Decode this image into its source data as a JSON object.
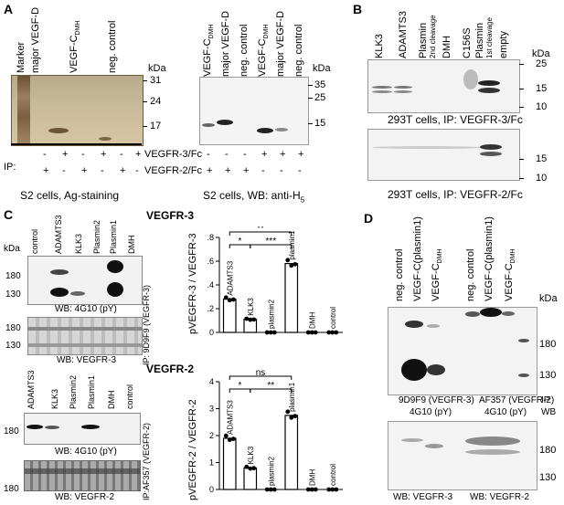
{
  "panels": {
    "A": {
      "label": "A",
      "left": {
        "lanes": [
          "Marker",
          "major VEGF-D",
          "VEGF-C",
          "neg. control"
        ],
        "lane_group_subs": {
          "VEGF-C": "DMH"
        },
        "kda": "kDa",
        "mw": [
          "31",
          "24",
          "17"
        ],
        "ip_label": "IP:",
        "ip_rows": [
          {
            "marks": [
              "-",
              "+",
              "-",
              "+",
              "-",
              "+"
            ],
            "label": "VEGFR-3/Fc"
          },
          {
            "marks": [
              "+",
              "-",
              "+",
              "-",
              "+",
              "-"
            ],
            "label": "VEGFR-2/Fc"
          }
        ],
        "caption": "S2 cells, Ag-staining"
      },
      "right": {
        "lanes": [
          "VEGF-C",
          "major VEGF-D",
          "neg. control",
          "VEGF-C",
          "major VEGF-D",
          "neg. control"
        ],
        "lane_subs": [
          "DMH",
          "",
          "",
          "DMH",
          "",
          ""
        ],
        "kda": "kDa",
        "mw": [
          "35",
          "25",
          "15"
        ],
        "marks_row1": [
          "-",
          "-",
          "-",
          "+",
          "+",
          "+"
        ],
        "marks_row2": [
          "+",
          "+",
          "+",
          "-",
          "-",
          "-"
        ],
        "caption": "S2 cells, WB: anti-H",
        "caption_sub": "5"
      }
    },
    "B": {
      "label": "B",
      "lanes": [
        "KLK3",
        "ADAMTS3",
        "Plasmin",
        "DMH",
        "C156S",
        "Plasmin",
        "empty"
      ],
      "lane_subs": [
        "",
        "",
        "2nd cleavage",
        "",
        "",
        "1st cleavage",
        ""
      ],
      "kda": "kDa",
      "mw_top": [
        "25",
        "15",
        "10"
      ],
      "caption_top": "293T cells, IP: VEGFR-3/Fc",
      "mw_bottom": [
        "15",
        "10"
      ],
      "caption_bottom": "293T cells, IP: VEGFR-2/Fc"
    },
    "C": {
      "label": "C",
      "vegfr3_title": "VEGFR-3",
      "vegfr2_title": "VEGFR-2",
      "top_lanes": [
        "control",
        "ADAMTS3",
        "KLK3",
        "Plasmin2",
        "Plasmin1",
        "DMH"
      ],
      "top_kda": "kDa",
      "top_mw": [
        "180",
        "130"
      ],
      "top_wb1": "WB: 4G10 (pY)",
      "top_ip": "IP: 9D9F9 (VEGFR-3)",
      "top_mw2": [
        "180",
        "130"
      ],
      "top_wb2": "WB: VEGFR-3",
      "bot_lanes": [
        "ADAMTS3",
        "KLK3",
        "Plasmin2",
        "Plasmin1",
        "DMH",
        "control"
      ],
      "bot_mw": [
        "180"
      ],
      "bot_wb1": "WB: 4G10 (pY)",
      "bot_ip": "IP:AF357 (VEGFR-2)",
      "bot_mw2": [
        "180"
      ],
      "bot_wb2": "WB: VEGFR-2",
      "sig_top": [
        "**",
        "*",
        "***"
      ],
      "sig_bot": [
        "ns",
        "*",
        "**"
      ]
    },
    "D": {
      "label": "D",
      "lanes": [
        "neg. control",
        "VEGF-C(plasmin1)",
        "VEGF-C",
        "neg. control",
        "VEGF-C(plasmin1)",
        "VEGF-C"
      ],
      "lane_subs": [
        "",
        "",
        "DMH",
        "",
        "",
        "DMH"
      ],
      "kda": "kDa",
      "mw": [
        "180",
        "130"
      ],
      "ip_left": "9D9F9 (VEGFR-3)",
      "ip_right": "AF357 (VEGFR-2)",
      "ip_tag": "IP",
      "wb_left": "4G10 (pY)",
      "wb_right": "4G10 (pY)",
      "wb_tag": "WB",
      "mw2": [
        "180",
        "130"
      ],
      "wb2_left": "WB: VEGFR-3",
      "wb2_right": "WB: VEGFR-2"
    }
  },
  "chart_data": [
    {
      "type": "bar",
      "title": "",
      "ylabel": "pVEGFR-3 / VEGFR-3",
      "categories": [
        "ADAMTS3",
        "KLK3",
        "plasmin2",
        "plasmin1",
        "DMH",
        "control"
      ],
      "values": [
        0.28,
        0.11,
        0.0,
        0.58,
        0.0,
        0.0
      ],
      "ylim": [
        0,
        0.8
      ],
      "yticks": [
        "0",
        ".2",
        ".4",
        ".6",
        ".8"
      ]
    },
    {
      "type": "bar",
      "title": "",
      "ylabel": "pVEGFR-2 / VEGFR-2",
      "categories": [
        "ADAMTS3",
        "KLK3",
        "plasmin2",
        "plasmin1",
        "DMH",
        "control"
      ],
      "values": [
        1.9,
        0.8,
        0.0,
        2.75,
        0.0,
        0.0
      ],
      "ylim": [
        0,
        4
      ],
      "yticks": [
        "0",
        "1",
        "2",
        "3",
        "4"
      ]
    }
  ]
}
